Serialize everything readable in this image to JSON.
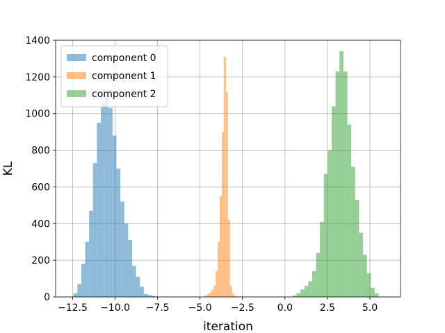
{
  "chart_data": {
    "type": "bar",
    "title": "",
    "xlabel": "iteration",
    "ylabel": "KL",
    "xlim": [
      -13.5,
      6.8
    ],
    "ylim": [
      0,
      1400
    ],
    "xticks": [
      -12.5,
      -10.0,
      -7.5,
      -5.0,
      -2.5,
      0.0,
      2.5,
      5.0
    ],
    "xtick_labels": [
      "−12.5",
      "−10.0",
      "−7.5",
      "−5.0",
      "−2.5",
      "0.0",
      "2.5",
      "5.0"
    ],
    "yticks": [
      0,
      200,
      400,
      600,
      800,
      1000,
      1200,
      1400
    ],
    "ytick_labels": [
      "0",
      "200",
      "400",
      "600",
      "800",
      "1000",
      "1200",
      "1400"
    ],
    "grid": true,
    "legend_position": "top-left",
    "series": [
      {
        "name": "component 0",
        "color": "#1f77b4",
        "alpha": 0.5,
        "bins": [
          [
            -12.45,
            -12.22,
            20
          ],
          [
            -12.22,
            -11.99,
            70
          ],
          [
            -11.99,
            -11.76,
            180
          ],
          [
            -11.76,
            -11.53,
            300
          ],
          [
            -11.53,
            -11.3,
            470
          ],
          [
            -11.3,
            -11.07,
            730
          ],
          [
            -11.07,
            -10.84,
            950
          ],
          [
            -10.84,
            -10.61,
            1060
          ],
          [
            -10.61,
            -10.38,
            1100
          ],
          [
            -10.38,
            -10.15,
            1030
          ],
          [
            -10.15,
            -9.92,
            880
          ],
          [
            -9.92,
            -9.69,
            700
          ],
          [
            -9.69,
            -9.46,
            520
          ],
          [
            -9.46,
            -9.23,
            400
          ],
          [
            -9.23,
            -9.0,
            310
          ],
          [
            -9.0,
            -8.77,
            170
          ],
          [
            -8.77,
            -8.54,
            110
          ],
          [
            -8.54,
            -8.31,
            55
          ],
          [
            -8.31,
            -8.08,
            15
          ],
          [
            -8.08,
            -7.85,
            10
          ],
          [
            -7.85,
            -7.62,
            5
          ]
        ]
      },
      {
        "name": "component 1",
        "color": "#ff7f0e",
        "alpha": 0.5,
        "bins": [
          [
            -4.8,
            -4.68,
            3
          ],
          [
            -4.68,
            -4.56,
            8
          ],
          [
            -4.56,
            -4.44,
            15
          ],
          [
            -4.44,
            -4.32,
            25
          ],
          [
            -4.32,
            -4.2,
            40
          ],
          [
            -4.2,
            -4.08,
            60
          ],
          [
            -4.08,
            -3.96,
            140
          ],
          [
            -3.96,
            -3.84,
            300
          ],
          [
            -3.84,
            -3.72,
            550
          ],
          [
            -3.72,
            -3.6,
            900
          ],
          [
            -3.6,
            -3.48,
            1310
          ],
          [
            -3.48,
            -3.36,
            1120
          ],
          [
            -3.36,
            -3.24,
            420
          ],
          [
            -3.24,
            -3.12,
            60
          ],
          [
            -3.12,
            -3.0,
            20
          ],
          [
            -3.0,
            -2.88,
            8
          ],
          [
            -2.88,
            -2.76,
            3
          ]
        ]
      },
      {
        "name": "component 2",
        "color": "#2ca02c",
        "alpha": 0.5,
        "bins": [
          [
            0.45,
            0.68,
            8
          ],
          [
            0.68,
            0.91,
            20
          ],
          [
            0.91,
            1.14,
            40
          ],
          [
            1.14,
            1.37,
            60
          ],
          [
            1.37,
            1.6,
            85
          ],
          [
            1.6,
            1.83,
            140
          ],
          [
            1.83,
            2.06,
            240
          ],
          [
            2.06,
            2.29,
            410
          ],
          [
            2.29,
            2.52,
            670
          ],
          [
            2.52,
            2.75,
            800
          ],
          [
            2.75,
            2.98,
            1040
          ],
          [
            2.98,
            3.21,
            1230
          ],
          [
            3.21,
            3.44,
            1340
          ],
          [
            3.44,
            3.67,
            1230
          ],
          [
            3.67,
            3.9,
            940
          ],
          [
            3.9,
            4.13,
            710
          ],
          [
            4.13,
            4.36,
            530
          ],
          [
            4.36,
            4.59,
            350
          ],
          [
            4.59,
            4.82,
            230
          ],
          [
            4.82,
            5.05,
            130
          ],
          [
            5.05,
            5.28,
            50
          ],
          [
            5.28,
            5.51,
            20
          ]
        ]
      }
    ]
  }
}
